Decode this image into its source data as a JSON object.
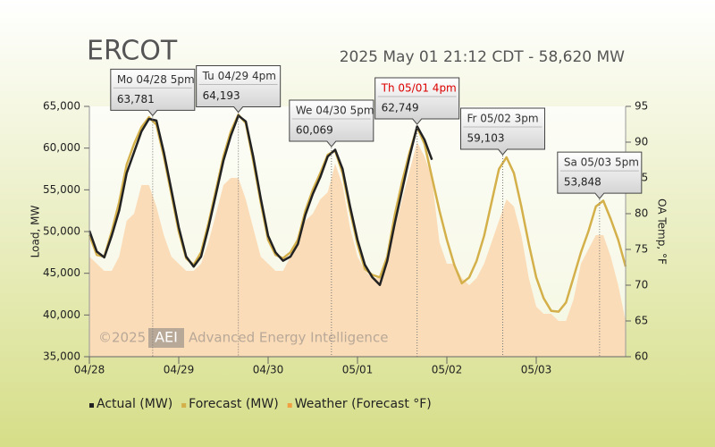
{
  "chart_data": {
    "type": "line",
    "title": "ERCOT",
    "subtitle": "2025 May 01 21:12 CDT - 58,620 MW",
    "watermark": {
      "copyright": "©2025",
      "logo": "AEI",
      "name": "Advanced Energy Intelligence"
    },
    "ylabel": "Load, MW",
    "y2label": "OA Temp, °F",
    "x": [
      0,
      2,
      4,
      6,
      8,
      10,
      12,
      14,
      16,
      18,
      20,
      22,
      24,
      26,
      28,
      30,
      32,
      34,
      36,
      38,
      40,
      42,
      44,
      46,
      48,
      50,
      52,
      54,
      56,
      58,
      60,
      62,
      64,
      66,
      68,
      70,
      72,
      74,
      76,
      78,
      80,
      82,
      84,
      86,
      88,
      90,
      92,
      94,
      96,
      98,
      100,
      102,
      104,
      106,
      108,
      110,
      112,
      114,
      116,
      118,
      120,
      122,
      124,
      126,
      128,
      130,
      132,
      134,
      136,
      138,
      140,
      142,
      144
    ],
    "xlim": [
      0,
      144
    ],
    "xticks": [
      {
        "value": 0,
        "label": "04/28"
      },
      {
        "value": 24,
        "label": "04/29"
      },
      {
        "value": 48,
        "label": "04/30"
      },
      {
        "value": 72,
        "label": "05/01"
      },
      {
        "value": 96,
        "label": "05/02"
      },
      {
        "value": 120,
        "label": "05/03"
      }
    ],
    "ylim": [
      35000,
      65000
    ],
    "yticks": [
      {
        "value": 35000,
        "label": "35,000"
      },
      {
        "value": 40000,
        "label": "40,000"
      },
      {
        "value": 45000,
        "label": "45,000"
      },
      {
        "value": 50000,
        "label": "50,000"
      },
      {
        "value": 55000,
        "label": "55,000"
      },
      {
        "value": 60000,
        "label": "60,000"
      },
      {
        "value": 65000,
        "label": "65,000"
      }
    ],
    "y2lim": [
      60,
      95
    ],
    "y2ticks": [
      60,
      65,
      70,
      75,
      80,
      85,
      90,
      95
    ],
    "series": [
      {
        "name": "Weather (Forecast °F)",
        "color": "#fbdcb8",
        "axis": "y2",
        "style": "area",
        "values": [
          74,
          73,
          72,
          72,
          74,
          79,
          80,
          84,
          84,
          81,
          77,
          74,
          73,
          72,
          72,
          73,
          76,
          80,
          84,
          85,
          85,
          82,
          78,
          74,
          73,
          72,
          72,
          74,
          77,
          79,
          80,
          82,
          83,
          87,
          84,
          78,
          74,
          72,
          71,
          71,
          74,
          78,
          82,
          86,
          90,
          88,
          85,
          76,
          73,
          73,
          71,
          70,
          71,
          73,
          76,
          79,
          82,
          81,
          77,
          71,
          67,
          66,
          66,
          65,
          65,
          68,
          73,
          75,
          77,
          77,
          74,
          70,
          65
        ]
      },
      {
        "name": "Forecast (MW)",
        "color": "#d4b04a",
        "style": "line",
        "values": [
          49600,
          47200,
          47000,
          50000,
          53500,
          58000,
          60500,
          62500,
          63700,
          62800,
          59000,
          54500,
          50000,
          46800,
          46000,
          47500,
          51000,
          55000,
          59000,
          62000,
          64000,
          63000,
          58500,
          53500,
          49000,
          47200,
          46800,
          47500,
          49000,
          52500,
          55000,
          57000,
          59200,
          59700,
          57000,
          52500,
          48500,
          45500,
          44800,
          44500,
          47000,
          52000,
          56000,
          59500,
          62500,
          60500,
          56500,
          52500,
          49000,
          46000,
          43800,
          44500,
          46500,
          49500,
          53500,
          57500,
          58900,
          57000,
          53000,
          48500,
          44500,
          42000,
          40500,
          40400,
          41500,
          44500,
          47500,
          50000,
          53000,
          53700,
          51500,
          49000,
          45800
        ]
      },
      {
        "name": "Actual (MW)",
        "color": "#222222",
        "style": "line",
        "values": [
          50100,
          47600,
          46900,
          49500,
          52500,
          57000,
          59500,
          62000,
          63500,
          63300,
          59500,
          55000,
          50500,
          47000,
          45800,
          47000,
          50500,
          54500,
          58500,
          61500,
          63900,
          63200,
          59000,
          54000,
          49500,
          47500,
          46500,
          47000,
          48500,
          52000,
          54500,
          56500,
          59000,
          59800,
          57500,
          53000,
          49000,
          46000,
          44500,
          43600,
          46500,
          51000,
          55000,
          59000,
          62600,
          61000,
          58600,
          null,
          null,
          null,
          null,
          null,
          null,
          null,
          null,
          null,
          null,
          null,
          null,
          null,
          null,
          null,
          null,
          null,
          null,
          null,
          null,
          null,
          null,
          null,
          null,
          null,
          null
        ]
      }
    ],
    "legend_order": [
      2,
      1,
      0
    ],
    "annotations": [
      {
        "label": "Mo 04/28 5pm",
        "x": 17,
        "value": 63781,
        "value_label": "63,781",
        "color": "#333333"
      },
      {
        "label": "Tu 04/29 4pm",
        "x": 40,
        "value": 64193,
        "value_label": "64,193",
        "color": "#333333"
      },
      {
        "label": "We 04/30 5pm",
        "x": 65,
        "value": 60069,
        "value_label": "60,069",
        "color": "#333333"
      },
      {
        "label": "Th 05/01 4pm",
        "x": 88,
        "value": 62749,
        "value_label": "62,749",
        "color": "#dd0000"
      },
      {
        "label": "Fr 05/02 3pm",
        "x": 111,
        "value": 59103,
        "value_label": "59,103",
        "color": "#333333"
      },
      {
        "label": "Sa 05/03 5pm",
        "x": 137,
        "value": 53848,
        "value_label": "53,848",
        "color": "#333333"
      }
    ]
  }
}
